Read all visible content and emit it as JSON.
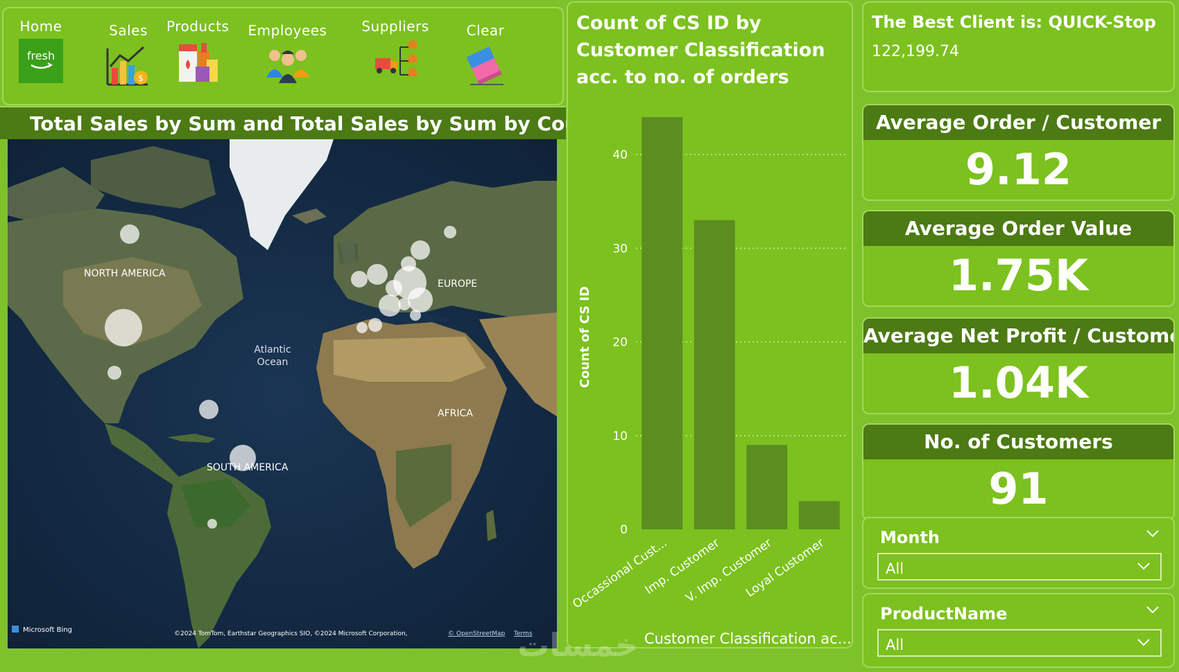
{
  "nav": {
    "items": [
      {
        "label": "Home",
        "icon": "fresh-logo-icon",
        "logo_text": "fresh"
      },
      {
        "label": "Sales",
        "icon": "sales-chart-icon"
      },
      {
        "label": "Products",
        "icon": "products-icon"
      },
      {
        "label": "Employees",
        "icon": "employees-icon"
      },
      {
        "label": "Suppliers",
        "icon": "suppliers-icon"
      },
      {
        "label": "Clear",
        "icon": "eraser-icon"
      }
    ]
  },
  "map": {
    "title": "Total Sales by Sum and Total Sales by Sum by Country",
    "labels": {
      "north_america": "NORTH AMERICA",
      "europe": "EUROPE",
      "atlantic": "Atlantic",
      "ocean": "Ocean",
      "africa": "AFRICA",
      "south_america": "SOUTH AMERICA"
    },
    "attribution_left": "Microsoft Bing",
    "attribution_right": "©2024 TomTom, Earthstar Geographics SIO, ©2024 Microsoft Corporation,",
    "osm_link": "© OpenStreetMap",
    "terms_link": "Terms"
  },
  "chart_data": {
    "type": "bar",
    "title": "Count of CS ID by Customer Classification acc. to no. of orders",
    "xlabel": "Customer Classification ac...",
    "ylabel": "Count of CS ID",
    "categories": [
      "Occassional Cust...",
      "Imp. Customer",
      "V. Imp. Customer",
      "Loyal Customer"
    ],
    "values": [
      44,
      33,
      9,
      3
    ],
    "ylim": [
      0,
      44
    ],
    "yticks": [
      "0",
      "10",
      "20",
      "30",
      "40"
    ],
    "grid": true,
    "bar_color": "#5b8d21"
  },
  "best_client": {
    "title": "The Best Client is: QUICK-Stop",
    "value": "122,199.74"
  },
  "kpis": [
    {
      "label": "Average Order / Customer",
      "value": "9.12"
    },
    {
      "label": "Average Order Value",
      "value": "1.75K"
    },
    {
      "label": "Average Net Profit / Customer",
      "value": "1.04K"
    },
    {
      "label": "No. of Customers",
      "value": "91"
    }
  ],
  "slicers": {
    "month": {
      "label": "Month",
      "value": "All"
    },
    "product": {
      "label": "ProductName",
      "value": "All"
    }
  },
  "watermark": "خمسات"
}
